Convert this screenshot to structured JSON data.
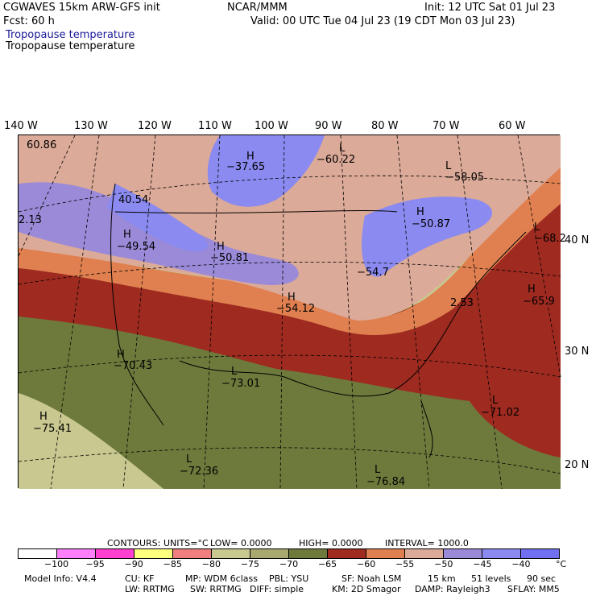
{
  "header": {
    "model": "CGWAVES 15km ARW-GFS init",
    "org": "NCAR/MMM",
    "init": "Init: 12 UTC Sat 01 Jul 23",
    "fcst": "Fcst:    60 h",
    "valid": "Valid: 00 UTC Tue 04 Jul 23 (19 CDT Mon 03 Jul 23)",
    "field_blue": "Tropopause temperature",
    "field_black": "Tropopause temperature"
  },
  "longitude_labels": [
    "140 W",
    "130 W",
    "120 W",
    "110 W",
    "100 W",
    "90 W",
    "80 W",
    "70 W",
    "60 W"
  ],
  "latitude_labels": [
    "40 N",
    "30 N",
    "20 N"
  ],
  "map_labels": [
    {
      "letter": "",
      "value": "60.86"
    },
    {
      "letter": "H",
      "value": "−37.65"
    },
    {
      "letter": "L",
      "value": "−60.22"
    },
    {
      "letter": "L",
      "value": "−58.05"
    },
    {
      "letter": "",
      "value": "40.54"
    },
    {
      "letter": "",
      "value": "2.13"
    },
    {
      "letter": "H",
      "value": "−49.54"
    },
    {
      "letter": "H",
      "value": "−50.81"
    },
    {
      "letter": "H",
      "value": "−50.87"
    },
    {
      "letter": "L",
      "value": "−68.2"
    },
    {
      "letter": "",
      "value": "−54.7"
    },
    {
      "letter": "H",
      "value": "−54.12"
    },
    {
      "letter": "",
      "value": "2.53"
    },
    {
      "letter": "H",
      "value": "−65.9"
    },
    {
      "letter": "H",
      "value": "−70.43"
    },
    {
      "letter": "L",
      "value": "−73.01"
    },
    {
      "letter": "H",
      "value": "−75.41"
    },
    {
      "letter": "L",
      "value": "−71.02"
    },
    {
      "letter": "L",
      "value": "−72.36"
    },
    {
      "letter": "L",
      "value": "−76.84"
    }
  ],
  "contour_info": {
    "contours": "CONTOURS:",
    "units": "UNITS=°C",
    "low": "LOW=  0.0000",
    "high": "HIGH=  0.0000",
    "interval": "INTERVAL=   1000.0"
  },
  "colorbar": {
    "colors": [
      "#ffffff",
      "#ff80ff",
      "#ff40d0",
      "#ffff80",
      "#f08080",
      "#c8c890",
      "#a8a870",
      "#6e7a3c",
      "#9e2a20",
      "#e08050",
      "#dcaa98",
      "#9a8ad8",
      "#8a8af0",
      "#7070f0"
    ],
    "ticks": [
      "−100",
      "−95",
      "−90",
      "−85",
      "−80",
      "−75",
      "−70",
      "−65",
      "−60",
      "−55",
      "−50",
      "−45",
      "−40"
    ],
    "unit": "°C"
  },
  "footer": {
    "line1": [
      "Model Info: V4.4",
      "CU: KF",
      "MP: WDM 6class",
      "PBL: YSU",
      "SF: Noah LSM",
      "15 km",
      "51 levels",
      "90 sec"
    ],
    "line2": [
      "LW: RRTMG",
      "SW: RRTMG",
      "DIFF: simple",
      "KM: 2D Smagor",
      "DAMP: Rayleigh3",
      "SFLAY: MM5"
    ]
  }
}
